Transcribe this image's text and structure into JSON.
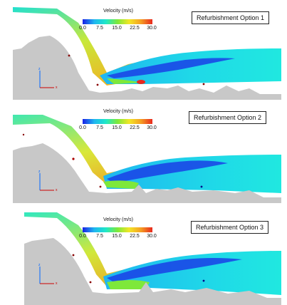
{
  "velocity_scale": {
    "title": "Velocity (m/s)",
    "ticks": [
      "0.0",
      "7.5",
      "15.0",
      "22.5",
      "30.0"
    ]
  },
  "panels": [
    {
      "label": "Refurbishment Option 1"
    },
    {
      "label": "Refurbishment Option 2"
    },
    {
      "label": "Refurbishment Option 3"
    }
  ],
  "axes": {
    "x": "x",
    "z": "z"
  },
  "colors": {
    "terrain": "#c8c8c8",
    "low_velocity": "#1a20e6",
    "mid_velocity": "#7ee83a",
    "high_velocity": "#e8281e"
  }
}
